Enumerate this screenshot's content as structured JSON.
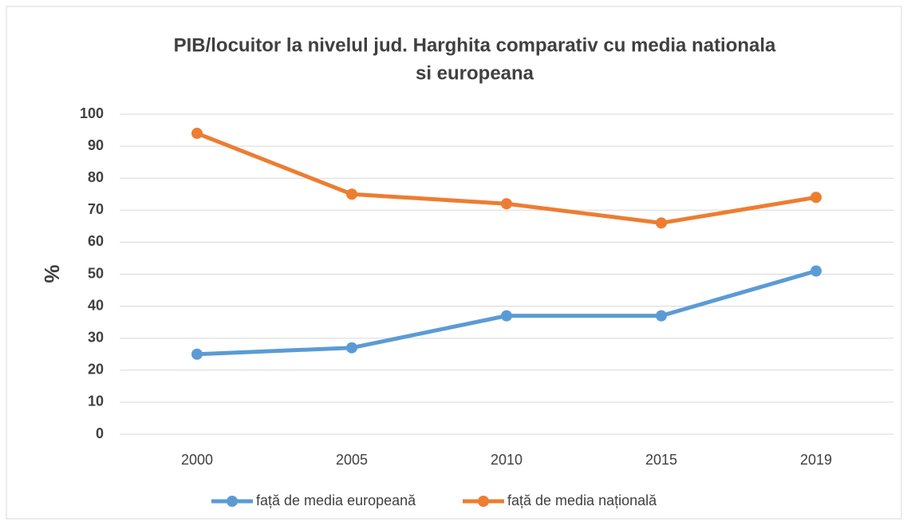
{
  "chart_data": {
    "type": "line",
    "title": [
      "PIB/locuitor la nivelul jud. Harghita comparativ cu media nationala",
      "si europeana"
    ],
    "y_label": "%",
    "categories": [
      "2000",
      "2005",
      "2010",
      "2015",
      "2019"
    ],
    "series": [
      {
        "name": "față de media europeană",
        "color": "#5b9bd5",
        "values": [
          25,
          27,
          37,
          37,
          51
        ]
      },
      {
        "name": "față de media națională",
        "color": "#ed7d31",
        "values": [
          94,
          75,
          72,
          66,
          74
        ]
      }
    ],
    "ylim": [
      0,
      100
    ],
    "yticks": [
      0,
      10,
      20,
      30,
      40,
      50,
      60,
      70,
      80,
      90,
      100
    ],
    "grid": true,
    "legend": "bottom"
  }
}
